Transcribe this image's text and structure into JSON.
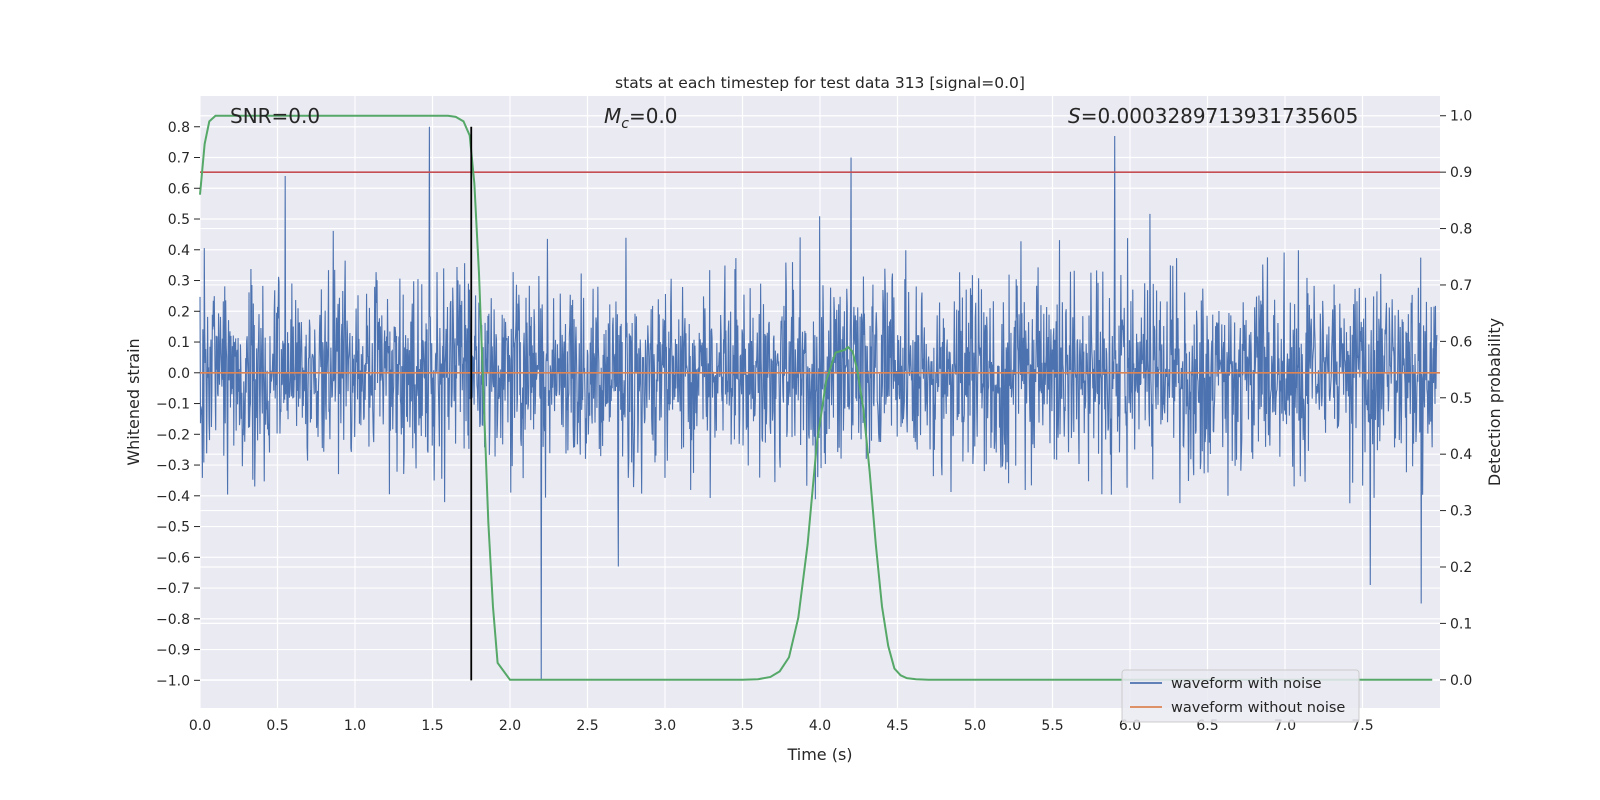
{
  "chart_data": {
    "type": "line",
    "title": "stats at each timestep for test data 313 [signal=0.0]",
    "annotations": {
      "snr": "SNR=0.0",
      "mc_symbol": "M",
      "mc_sub": "c",
      "mc_value": "=0.0",
      "s_symbol": "S",
      "s_value": "=0.0003289713931735605"
    },
    "xlabel": "Time (s)",
    "ylabel_left": "Whitened strain",
    "ylabel_right": "Detection probability",
    "xlim": [
      0.0,
      8.0
    ],
    "ylim_left": [
      -1.09,
      0.9
    ],
    "ylim_right": [
      -0.05,
      1.035
    ],
    "x_ticks": [
      "0.0",
      "0.5",
      "1.0",
      "1.5",
      "2.0",
      "2.5",
      "3.0",
      "3.5",
      "4.0",
      "4.5",
      "5.0",
      "5.5",
      "6.0",
      "6.5",
      "7.0",
      "7.5"
    ],
    "x_tick_values": [
      0.0,
      0.5,
      1.0,
      1.5,
      2.0,
      2.5,
      3.0,
      3.5,
      4.0,
      4.5,
      5.0,
      5.5,
      6.0,
      6.5,
      7.0,
      7.5
    ],
    "y_left_ticks": [
      "0.8",
      "0.7",
      "0.6",
      "0.5",
      "0.4",
      "0.3",
      "0.2",
      "0.1",
      "0.0",
      "−0.1",
      "−0.2",
      "−0.3",
      "−0.4",
      "−0.5",
      "−0.6",
      "−0.7",
      "−0.8",
      "−0.9",
      "−1.0"
    ],
    "y_left_tick_values": [
      0.8,
      0.7,
      0.6,
      0.5,
      0.4,
      0.3,
      0.2,
      0.1,
      0.0,
      -0.1,
      -0.2,
      -0.3,
      -0.4,
      -0.5,
      -0.6,
      -0.7,
      -0.8,
      -0.9,
      -1.0
    ],
    "y_right_ticks": [
      "1.0",
      "0.9",
      "0.8",
      "0.7",
      "0.6",
      "0.5",
      "0.4",
      "0.3",
      "0.2",
      "0.1",
      "0.0"
    ],
    "y_right_tick_values": [
      1.0,
      0.9,
      0.8,
      0.7,
      0.6,
      0.5,
      0.4,
      0.3,
      0.2,
      0.1,
      0.0
    ],
    "grid": true,
    "legend_position": "lower right",
    "series": [
      {
        "name": "waveform with noise",
        "color": "#4c72b0",
        "axis": "left",
        "note": "dense noise, typical envelope about ±0.35",
        "peaks": [
          [
            0.55,
            0.64
          ],
          [
            1.48,
            0.8
          ],
          [
            2.2,
            -1.0
          ],
          [
            2.7,
            -0.63
          ],
          [
            4.2,
            0.7
          ],
          [
            5.9,
            0.77
          ],
          [
            7.55,
            -0.69
          ],
          [
            7.88,
            -0.75
          ]
        ]
      },
      {
        "name": "waveform without noise",
        "color": "#dd8452",
        "axis": "left",
        "x": [
          0.0,
          8.0
        ],
        "y": [
          0.0,
          0.0
        ]
      },
      {
        "color": "#55a868",
        "axis": "right",
        "x": [
          0.0,
          0.03,
          0.06,
          0.1,
          0.2,
          0.5,
          1.0,
          1.5,
          1.6,
          1.65,
          1.7,
          1.74,
          1.77,
          1.8,
          1.83,
          1.86,
          1.89,
          1.92,
          2.0,
          2.5,
          3.0,
          3.5,
          3.6,
          3.68,
          3.74,
          3.8,
          3.86,
          3.92,
          3.98,
          4.04,
          4.1,
          4.16,
          4.18,
          4.21,
          4.24,
          4.28,
          4.32,
          4.36,
          4.4,
          4.44,
          4.48,
          4.52,
          4.56,
          4.62,
          4.7,
          5.0,
          6.0,
          7.0,
          7.95
        ],
        "y": [
          0.86,
          0.95,
          0.99,
          1.0,
          1.0,
          1.0,
          1.0,
          1.0,
          1.0,
          0.998,
          0.99,
          0.965,
          0.88,
          0.72,
          0.5,
          0.28,
          0.13,
          0.03,
          0.0,
          0.0,
          0.0,
          0.0,
          0.001,
          0.005,
          0.015,
          0.04,
          0.11,
          0.24,
          0.42,
          0.53,
          0.58,
          0.585,
          0.59,
          0.582,
          0.55,
          0.48,
          0.37,
          0.24,
          0.13,
          0.06,
          0.02,
          0.008,
          0.003,
          0.001,
          0.0,
          0.0,
          0.0,
          0.0,
          0.0
        ]
      }
    ],
    "threshold_line": {
      "color": "#c44e52",
      "y_right": 0.9
    },
    "vertical_marker": {
      "color": "#000000",
      "x": 1.75,
      "y_from": -1.0,
      "y_to": 0.8
    }
  },
  "legend": [
    {
      "label": "waveform with noise",
      "color": "#4c72b0"
    },
    {
      "label": "waveform without noise",
      "color": "#dd8452"
    }
  ],
  "colors": {
    "plot_bg": "#eaeaf2",
    "grid": "#ffffff",
    "text": "#262626"
  }
}
